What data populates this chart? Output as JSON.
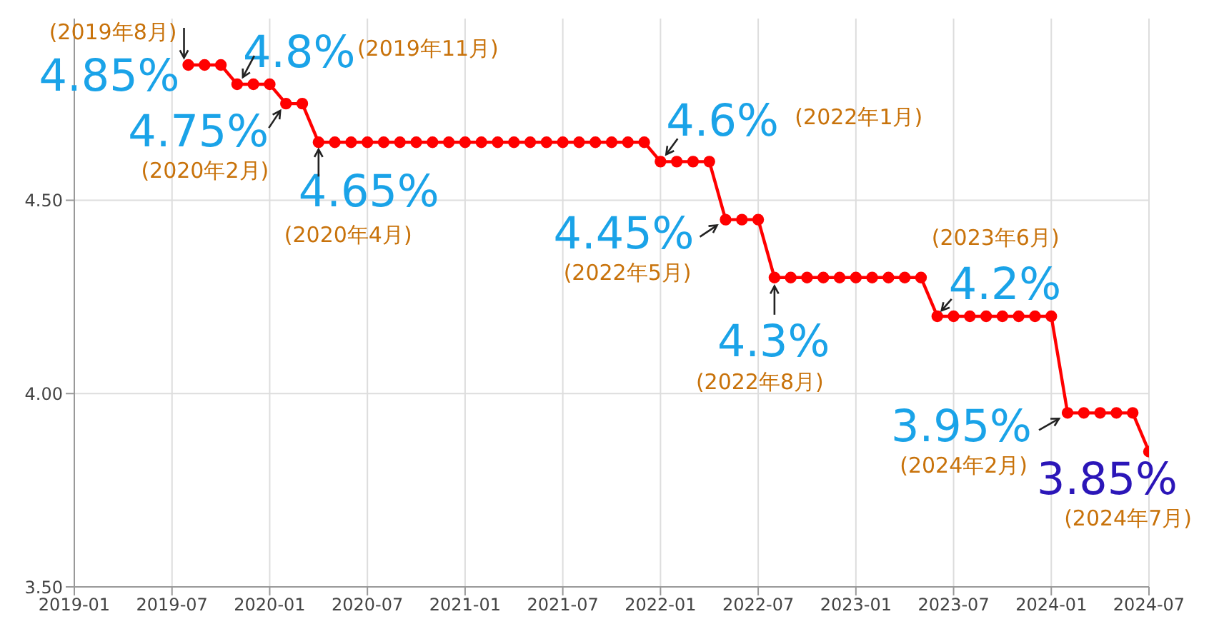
{
  "chart_data": {
    "type": "line",
    "x": [
      "2019-08",
      "2019-09",
      "2019-10",
      "2019-11",
      "2019-12",
      "2020-01",
      "2020-02",
      "2020-03",
      "2020-04",
      "2020-05",
      "2020-06",
      "2020-07",
      "2020-08",
      "2020-09",
      "2020-10",
      "2020-11",
      "2020-12",
      "2021-01",
      "2021-02",
      "2021-03",
      "2021-04",
      "2021-05",
      "2021-06",
      "2021-07",
      "2021-08",
      "2021-09",
      "2021-10",
      "2021-11",
      "2021-12",
      "2022-01",
      "2022-02",
      "2022-03",
      "2022-04",
      "2022-05",
      "2022-06",
      "2022-07",
      "2022-08",
      "2022-09",
      "2022-10",
      "2022-11",
      "2022-12",
      "2023-01",
      "2023-02",
      "2023-03",
      "2023-04",
      "2023-05",
      "2023-06",
      "2023-07",
      "2023-08",
      "2023-09",
      "2023-10",
      "2023-11",
      "2023-12",
      "2024-01",
      "2024-02",
      "2024-03",
      "2024-04",
      "2024-05",
      "2024-06",
      "2024-07"
    ],
    "series": [
      {
        "color": "#ff0000",
        "values": [
          4.85,
          4.85,
          4.85,
          4.8,
          4.8,
          4.8,
          4.75,
          4.75,
          4.65,
          4.65,
          4.65,
          4.65,
          4.65,
          4.65,
          4.65,
          4.65,
          4.65,
          4.65,
          4.65,
          4.65,
          4.65,
          4.65,
          4.65,
          4.65,
          4.65,
          4.65,
          4.65,
          4.65,
          4.65,
          4.6,
          4.6,
          4.6,
          4.6,
          4.45,
          4.45,
          4.45,
          4.3,
          4.3,
          4.3,
          4.3,
          4.3,
          4.3,
          4.3,
          4.3,
          4.3,
          4.3,
          4.2,
          4.2,
          4.2,
          4.2,
          4.2,
          4.2,
          4.2,
          4.2,
          3.95,
          3.95,
          3.95,
          3.95,
          3.95,
          3.85
        ]
      }
    ],
    "xlim": [
      "2019-01",
      "2024-07"
    ],
    "xticks": [
      "2019-01",
      "2019-07",
      "2020-01",
      "2020-07",
      "2021-01",
      "2021-07",
      "2022-01",
      "2022-07",
      "2023-01",
      "2023-07",
      "2024-01",
      "2024-07"
    ],
    "ylim": [
      3.5,
      4.97
    ],
    "yticks": [
      {
        "value": 3.5,
        "label": "3.50"
      },
      {
        "value": 4,
        "label": "4.00"
      },
      {
        "value": 4.5,
        "label": "4.50"
      }
    ],
    "grid": true,
    "marker": "circle",
    "line_style": "solid",
    "annotations": [
      {
        "text": "4.85%",
        "x": "2019-08",
        "y": 4.85
      },
      "(2019年8月)",
      {
        "text": "4.8%",
        "x": "2019-11",
        "y": 4.8
      },
      "(2019年11月)",
      {
        "text": "4.75%",
        "x": "2020-02",
        "y": 4.75
      },
      "(2020年2月)",
      {
        "text": "4.65%",
        "x": "2020-04",
        "y": 4.65
      },
      "(2020年4月)",
      {
        "text": "4.6%",
        "x": "2022-01",
        "y": 4.6
      },
      "(2022年1月)",
      {
        "text": "4.45%",
        "x": "2022-05",
        "y": 4.45
      },
      "(2022年5月)",
      {
        "text": "4.3%",
        "x": "2022-08",
        "y": 4.3
      },
      "(2022年8月)",
      {
        "text": "4.2%",
        "x": "2023-06",
        "y": 4.2
      },
      "(2023年6月)",
      {
        "text": "3.95%",
        "x": "2024-02",
        "y": 3.95
      },
      "(2024年2月)",
      {
        "text": "3.85%",
        "x": "2024-07",
        "y": 3.85
      },
      "(2024年7月)"
    ]
  }
}
